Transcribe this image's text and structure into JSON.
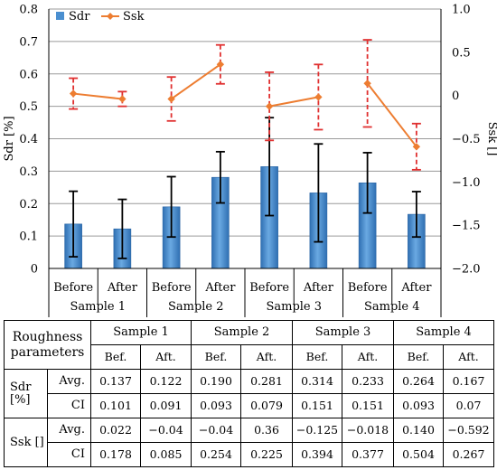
{
  "chart_data": {
    "type": "bar",
    "categories": [
      "Before",
      "After",
      "Before",
      "After",
      "Before",
      "After",
      "Before",
      "After"
    ],
    "groups": [
      "Sample 1",
      "Sample 2",
      "Sample 3",
      "Sample 4"
    ],
    "series": [
      {
        "name": "Sdr",
        "type": "bar",
        "axis": "left",
        "color": "#4a8fd0",
        "values": [
          0.137,
          0.122,
          0.19,
          0.281,
          0.314,
          0.233,
          0.264,
          0.167
        ],
        "ci": [
          0.101,
          0.091,
          0.093,
          0.079,
          0.151,
          0.151,
          0.093,
          0.07
        ]
      },
      {
        "name": "Ssk",
        "type": "line",
        "axis": "right",
        "color": "#ed7d31",
        "error_color": "#e03030",
        "values": [
          0.022,
          -0.04,
          -0.04,
          0.36,
          -0.125,
          -0.018,
          0.14,
          -0.592
        ],
        "ci": [
          0.178,
          0.085,
          0.254,
          0.225,
          0.394,
          0.377,
          0.504,
          0.267
        ]
      }
    ],
    "ylabel": "Sdr [%]",
    "y2label": "Ssk []",
    "ylim": [
      0,
      0.8
    ],
    "y2lim": [
      -2.0,
      1.0
    ],
    "yticks": [
      "0",
      "0.1",
      "0.2",
      "0.3",
      "0.4",
      "0.5",
      "0.6",
      "0.7",
      "0.8"
    ],
    "y2ticks": [
      "−2.0",
      "−1.5",
      "−1.0",
      "−0.5",
      "0",
      "0.5",
      "1.0"
    ],
    "grid": true,
    "legend": "top-left"
  },
  "table": {
    "header_label": "Roughness parameters",
    "samples": [
      "Sample 1",
      "Sample 2",
      "Sample 3",
      "Sample 4"
    ],
    "sub_before": "Bef.",
    "sub_after": "Aft.",
    "rows": [
      {
        "metric": "Sdr [%]",
        "stat": "Avg.",
        "values": [
          "0.137",
          "0.122",
          "0.190",
          "0.281",
          "0.314",
          "0.233",
          "0.264",
          "0.167"
        ]
      },
      {
        "metric": "",
        "stat": "CI",
        "values": [
          "0.101",
          "0.091",
          "0.093",
          "0.079",
          "0.151",
          "0.151",
          "0.093",
          "0.07"
        ]
      },
      {
        "metric": "Ssk []",
        "stat": "Avg.",
        "values": [
          "0.022",
          "−0.04",
          "−0.04",
          "0.36",
          "−0.125",
          "−0.018",
          "0.140",
          "−0.592"
        ]
      },
      {
        "metric": "",
        "stat": "CI",
        "values": [
          "0.178",
          "0.085",
          "0.254",
          "0.225",
          "0.394",
          "0.377",
          "0.504",
          "0.267"
        ]
      }
    ]
  }
}
